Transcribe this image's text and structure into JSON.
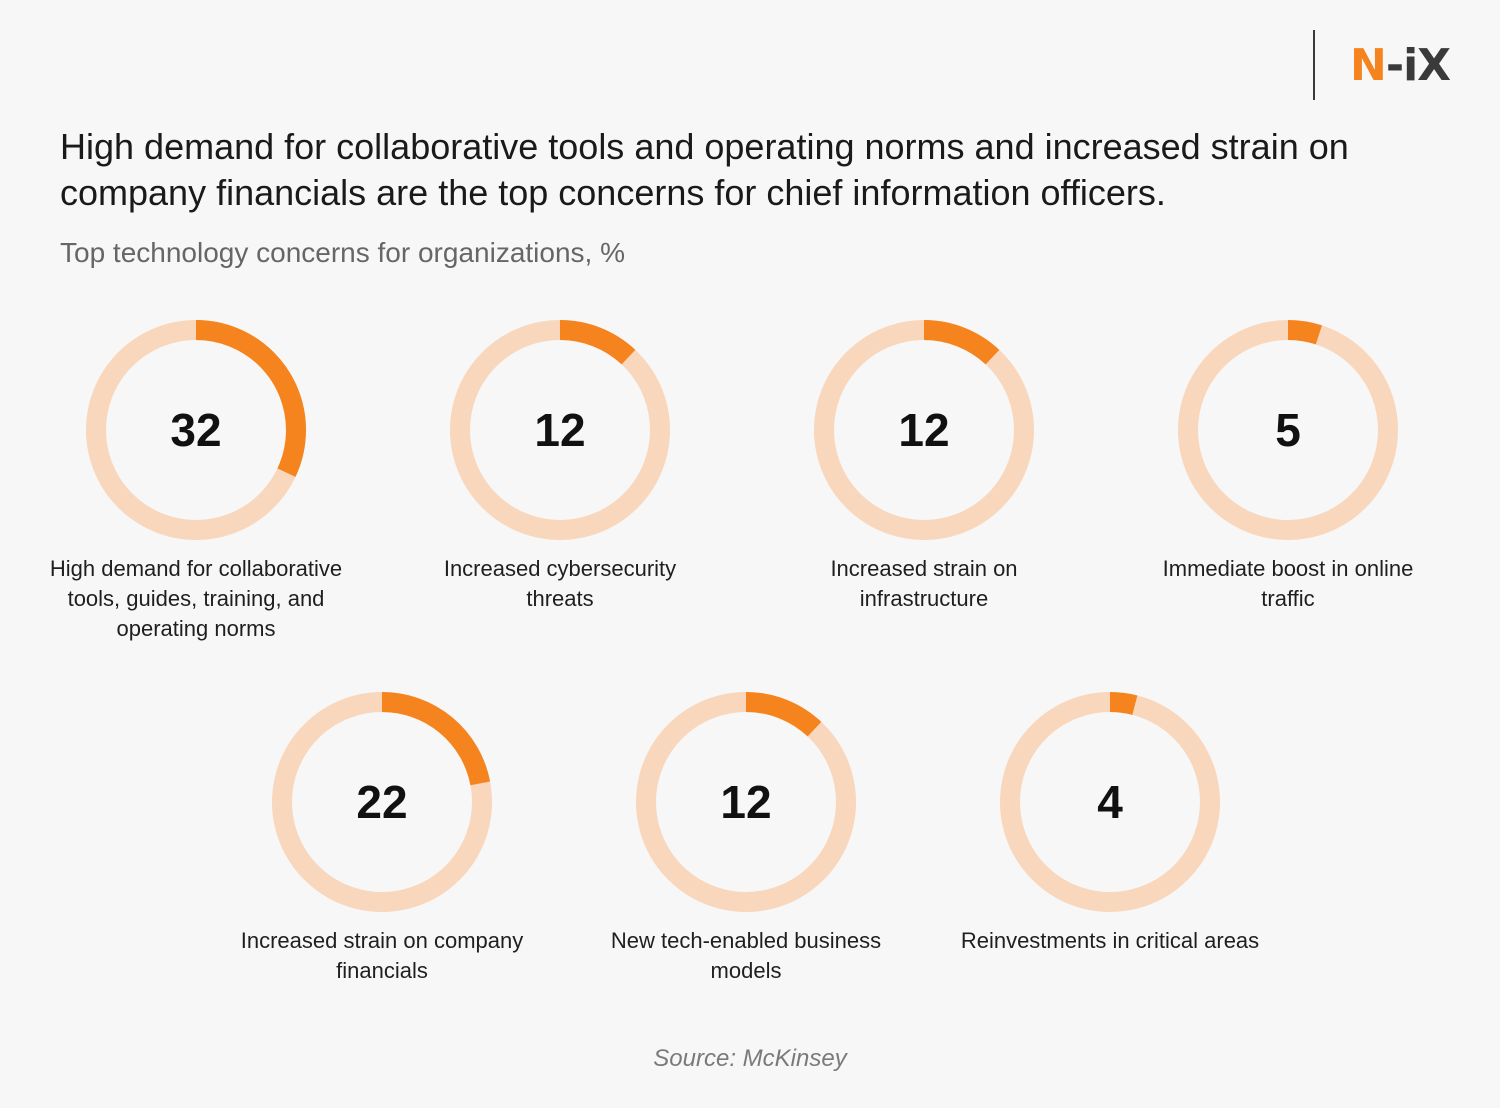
{
  "brand": {
    "logo_n": "N",
    "logo_rest": "-iX",
    "accent": "#f5841f",
    "dark": "#3a3a3a"
  },
  "title": "High demand for collaborative tools and operating norms and increased strain on company financials are the top concerns for chief information officers.",
  "subtitle": "Top technology concerns for organizations, %",
  "source": "Source: McKinsey",
  "chart_data": {
    "type": "donut",
    "unit": "%",
    "track_color": "#f8d7bc",
    "fill_color": "#f5841f",
    "items": [
      {
        "label": "High demand for collaborative tools, guides, training, and operating norms",
        "value": 32
      },
      {
        "label": "Increased cybersecurity threats",
        "value": 12
      },
      {
        "label": "Increased strain on infrastructure",
        "value": 12
      },
      {
        "label": "Immediate boost in online traffic",
        "value": 5
      },
      {
        "label": "Increased strain on company financials",
        "value": 22
      },
      {
        "label": "New tech-enabled business models",
        "value": 12
      },
      {
        "label": "Reinvestments in critical areas",
        "value": 4
      }
    ]
  }
}
